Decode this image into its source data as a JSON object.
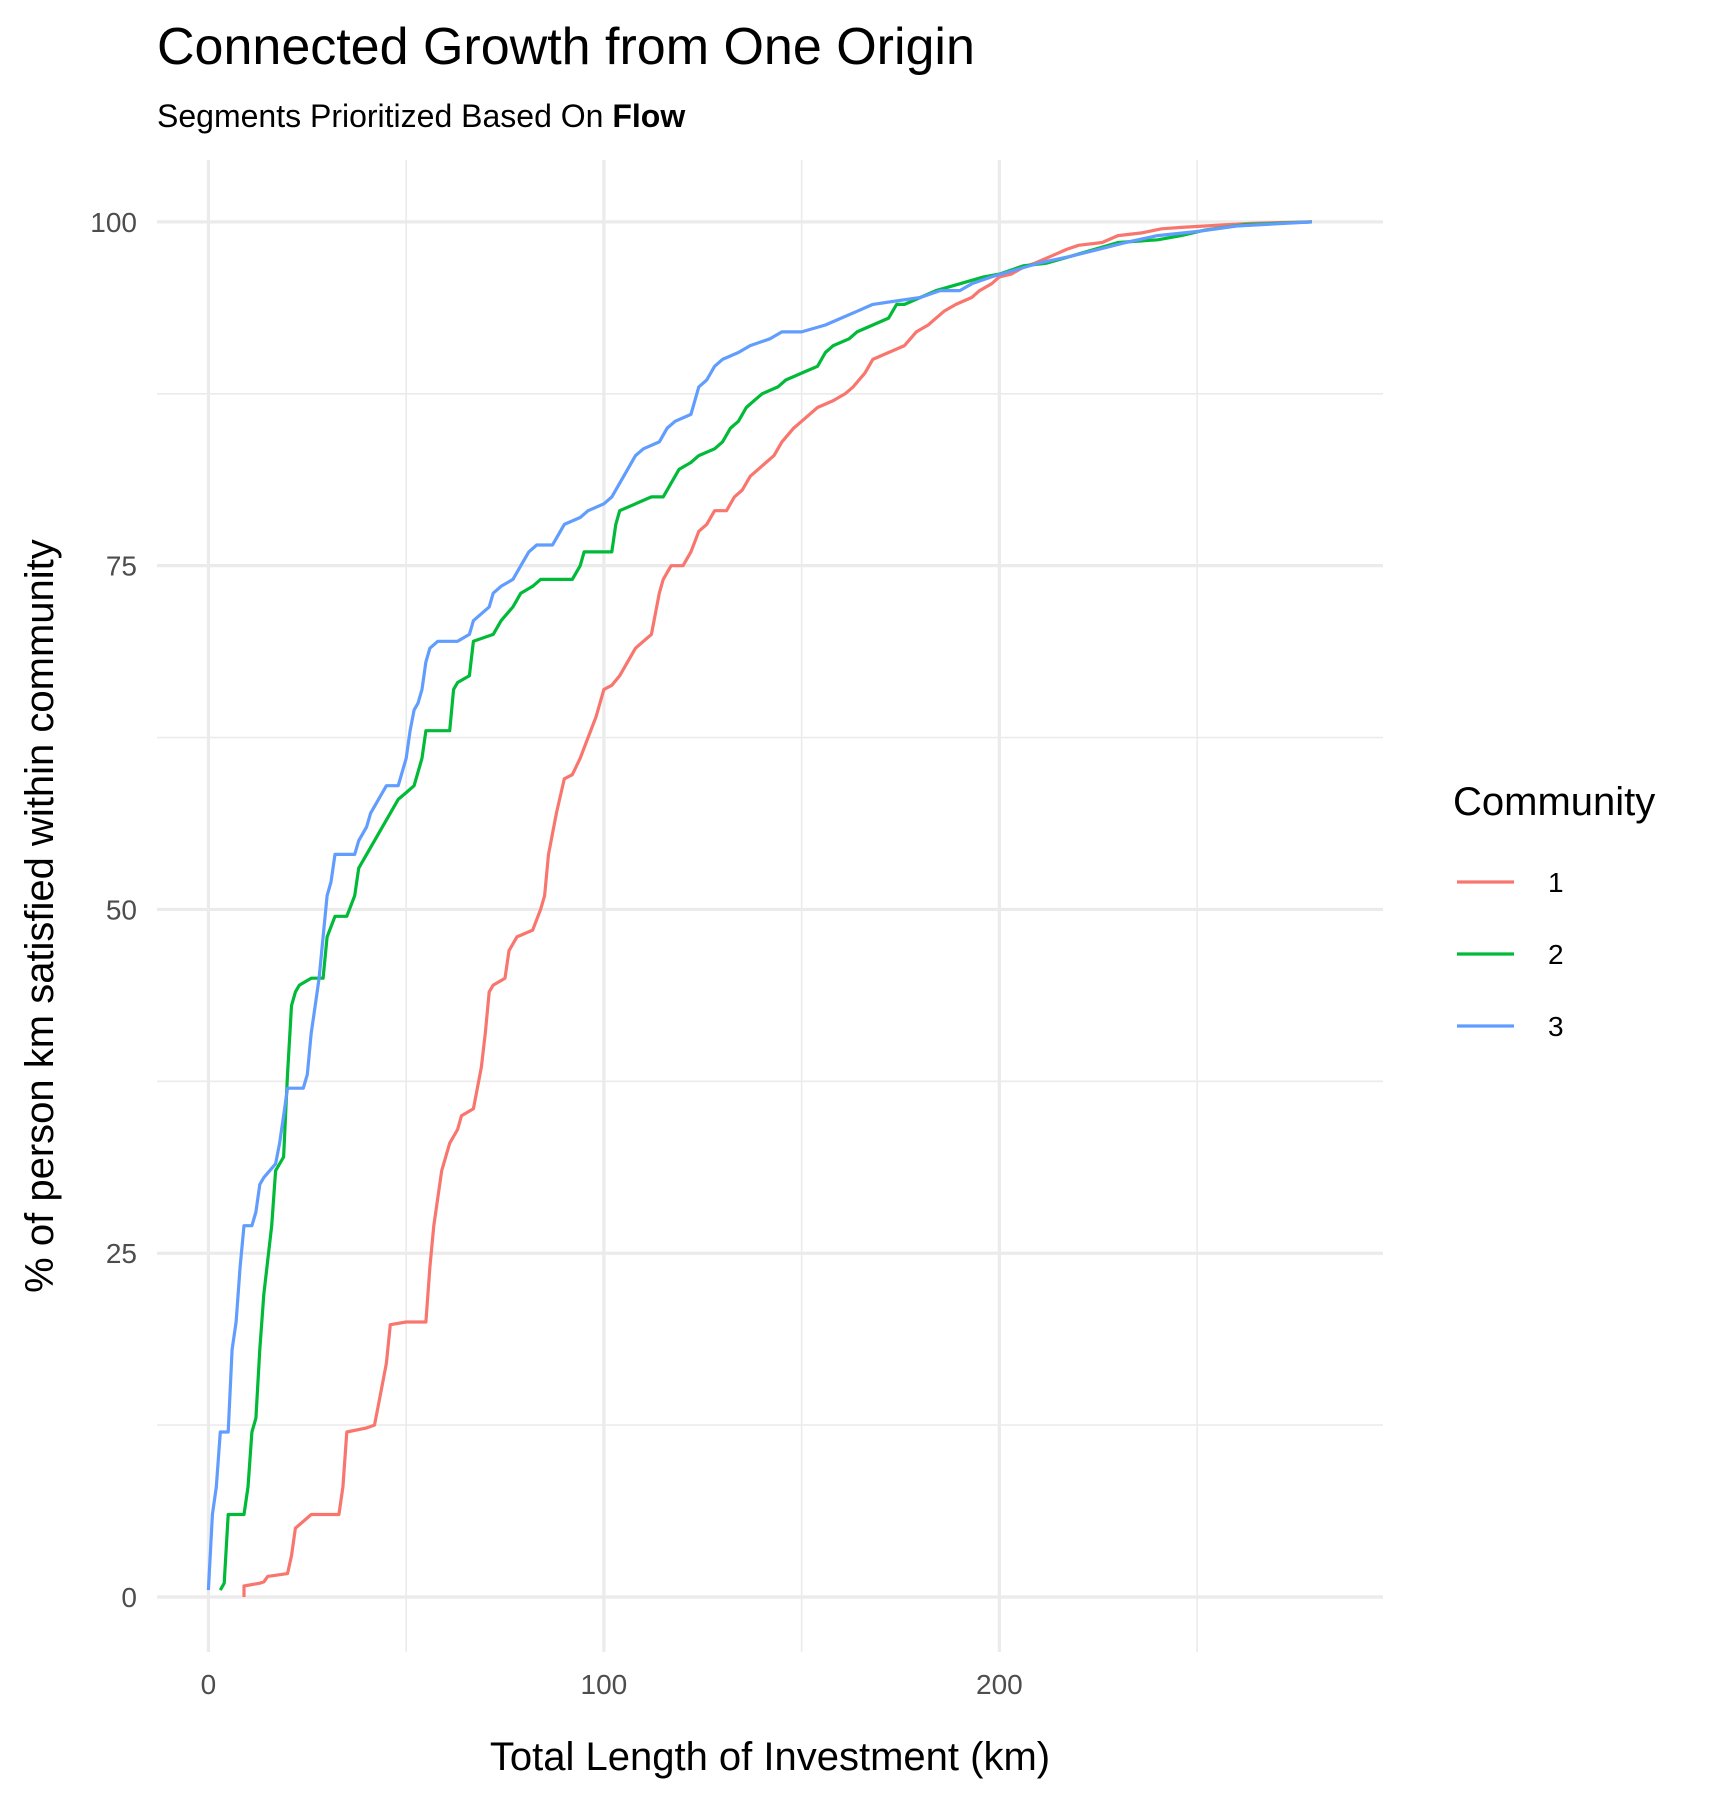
{
  "chart_data": {
    "type": "line",
    "title": "Connected Growth from One Origin",
    "subtitle_prefix": "Segments Prioritized Based On ",
    "subtitle_bold": "Flow",
    "xlabel": "Total Length of Investment (km)",
    "ylabel": "% of person km satisfied within community",
    "xlim": [
      -13,
      297
    ],
    "ylim": [
      -4,
      104.5
    ],
    "x_ticks": [
      0,
      100,
      200
    ],
    "x_minor_ticks": [
      50,
      150,
      250
    ],
    "y_ticks": [
      0,
      25,
      50,
      75,
      100
    ],
    "y_minor_ticks": [
      12.5,
      37.5,
      62.5,
      87.5
    ],
    "grid": true,
    "legend": {
      "title": "Community",
      "position": "right"
    },
    "series": [
      {
        "name": "1",
        "color": "#F8766D",
        "points": [
          [
            9,
            0
          ],
          [
            9,
            0.8
          ],
          [
            13,
            1
          ],
          [
            14,
            1.1
          ],
          [
            15,
            1.5
          ],
          [
            20,
            1.7
          ],
          [
            21,
            3
          ],
          [
            22,
            5
          ],
          [
            24,
            5.5
          ],
          [
            26,
            6
          ],
          [
            33,
            6
          ],
          [
            34,
            8
          ],
          [
            35,
            12
          ],
          [
            40,
            12.3
          ],
          [
            42,
            12.5
          ],
          [
            43,
            14
          ],
          [
            45,
            17
          ],
          [
            46,
            19.8
          ],
          [
            50,
            20
          ],
          [
            55,
            20
          ],
          [
            56,
            24
          ],
          [
            57,
            27
          ],
          [
            59,
            31
          ],
          [
            61,
            33
          ],
          [
            63,
            34
          ],
          [
            64,
            35
          ],
          [
            67,
            35.5
          ],
          [
            69,
            38.5
          ],
          [
            70,
            41
          ],
          [
            71,
            44
          ],
          [
            72,
            44.5
          ],
          [
            75,
            45
          ],
          [
            76,
            47
          ],
          [
            78,
            48
          ],
          [
            82,
            48.5
          ],
          [
            84,
            50
          ],
          [
            85,
            51
          ],
          [
            86,
            54
          ],
          [
            88,
            57
          ],
          [
            90,
            59.5
          ],
          [
            92,
            59.8
          ],
          [
            94,
            61
          ],
          [
            96,
            62.5
          ],
          [
            98,
            64
          ],
          [
            100,
            66
          ],
          [
            102,
            66.3
          ],
          [
            104,
            67
          ],
          [
            106,
            68
          ],
          [
            108,
            69
          ],
          [
            110,
            69.5
          ],
          [
            112,
            70
          ],
          [
            114,
            73
          ],
          [
            115,
            74
          ],
          [
            117,
            75
          ],
          [
            120,
            75
          ],
          [
            122,
            76
          ],
          [
            124,
            77.5
          ],
          [
            126,
            78
          ],
          [
            128,
            79
          ],
          [
            131,
            79
          ],
          [
            133,
            80
          ],
          [
            135,
            80.5
          ],
          [
            137,
            81.5
          ],
          [
            139,
            82
          ],
          [
            141,
            82.5
          ],
          [
            143,
            83
          ],
          [
            145,
            84
          ],
          [
            148,
            85
          ],
          [
            150,
            85.5
          ],
          [
            152,
            86
          ],
          [
            154,
            86.5
          ],
          [
            158,
            87
          ],
          [
            161,
            87.5
          ],
          [
            163,
            88
          ],
          [
            166,
            89
          ],
          [
            168,
            90
          ],
          [
            172,
            90.5
          ],
          [
            176,
            91
          ],
          [
            179,
            92
          ],
          [
            182,
            92.5
          ],
          [
            184,
            93
          ],
          [
            186,
            93.5
          ],
          [
            189,
            94
          ],
          [
            193,
            94.5
          ],
          [
            195,
            95
          ],
          [
            198,
            95.5
          ],
          [
            200,
            96
          ],
          [
            203,
            96.2
          ],
          [
            206,
            96.7
          ],
          [
            209,
            97
          ],
          [
            213,
            97.5
          ],
          [
            217,
            98
          ],
          [
            220,
            98.3
          ],
          [
            226,
            98.5
          ],
          [
            230,
            99
          ],
          [
            236,
            99.2
          ],
          [
            241,
            99.5
          ],
          [
            246,
            99.6
          ],
          [
            252,
            99.7
          ],
          [
            258,
            99.8
          ],
          [
            264,
            99.9
          ],
          [
            279,
            100
          ]
        ]
      },
      {
        "name": "2",
        "color": "#00BA38",
        "points": [
          [
            3,
            0.5
          ],
          [
            4,
            1
          ],
          [
            5,
            6
          ],
          [
            9,
            6
          ],
          [
            10,
            8
          ],
          [
            11,
            12
          ],
          [
            12,
            13
          ],
          [
            13,
            18
          ],
          [
            14,
            22
          ],
          [
            16,
            27
          ],
          [
            17,
            31
          ],
          [
            19,
            32
          ],
          [
            20,
            38
          ],
          [
            21,
            43
          ],
          [
            22,
            44
          ],
          [
            23,
            44.5
          ],
          [
            26,
            45
          ],
          [
            29,
            45
          ],
          [
            30,
            48
          ],
          [
            32,
            49.5
          ],
          [
            35,
            49.5
          ],
          [
            37,
            51
          ],
          [
            38,
            53
          ],
          [
            40,
            54
          ],
          [
            42,
            55
          ],
          [
            44,
            56
          ],
          [
            46,
            57
          ],
          [
            48,
            58
          ],
          [
            50,
            58.5
          ],
          [
            52,
            59
          ],
          [
            54,
            61
          ],
          [
            55,
            63
          ],
          [
            58,
            63
          ],
          [
            61,
            63
          ],
          [
            62,
            66
          ],
          [
            63,
            66.5
          ],
          [
            66,
            67
          ],
          [
            67,
            69.5
          ],
          [
            72,
            70
          ],
          [
            74,
            71
          ],
          [
            77,
            72
          ],
          [
            79,
            73
          ],
          [
            82,
            73.5
          ],
          [
            84,
            74
          ],
          [
            92,
            74
          ],
          [
            94,
            75
          ],
          [
            95,
            76
          ],
          [
            102,
            76
          ],
          [
            103,
            78
          ],
          [
            104,
            79
          ],
          [
            108,
            79.5
          ],
          [
            112,
            80
          ],
          [
            115,
            80
          ],
          [
            117,
            81
          ],
          [
            119,
            82
          ],
          [
            122,
            82.5
          ],
          [
            124,
            83
          ],
          [
            128,
            83.5
          ],
          [
            130,
            84
          ],
          [
            132,
            85
          ],
          [
            134,
            85.5
          ],
          [
            136,
            86.5
          ],
          [
            138,
            87
          ],
          [
            140,
            87.5
          ],
          [
            144,
            88
          ],
          [
            146,
            88.5
          ],
          [
            150,
            89
          ],
          [
            154,
            89.5
          ],
          [
            156,
            90.5
          ],
          [
            158,
            91
          ],
          [
            162,
            91.5
          ],
          [
            164,
            92
          ],
          [
            168,
            92.5
          ],
          [
            172,
            93
          ],
          [
            174,
            94
          ],
          [
            176,
            94
          ],
          [
            180,
            94.5
          ],
          [
            184,
            95
          ],
          [
            190,
            95.5
          ],
          [
            196,
            96
          ],
          [
            200,
            96.2
          ],
          [
            206,
            96.8
          ],
          [
            212,
            97
          ],
          [
            218,
            97.5
          ],
          [
            224,
            98
          ],
          [
            230,
            98.5
          ],
          [
            240,
            98.7
          ],
          [
            246,
            99
          ],
          [
            252,
            99.4
          ],
          [
            262,
            99.8
          ],
          [
            279,
            100
          ]
        ]
      },
      {
        "name": "3",
        "color": "#619CFF",
        "points": [
          [
            0,
            0.5
          ],
          [
            1,
            6
          ],
          [
            2,
            8
          ],
          [
            3,
            12
          ],
          [
            5,
            12
          ],
          [
            6,
            18
          ],
          [
            7,
            20
          ],
          [
            8,
            24
          ],
          [
            9,
            27
          ],
          [
            11,
            27
          ],
          [
            12,
            28
          ],
          [
            13,
            30
          ],
          [
            14,
            30.5
          ],
          [
            17,
            31.5
          ],
          [
            18,
            33
          ],
          [
            19,
            35
          ],
          [
            20,
            37
          ],
          [
            24,
            37
          ],
          [
            25,
            38
          ],
          [
            26,
            41
          ],
          [
            27,
            43
          ],
          [
            28,
            45
          ],
          [
            29,
            48
          ],
          [
            30,
            51
          ],
          [
            31,
            52
          ],
          [
            32,
            54
          ],
          [
            37,
            54
          ],
          [
            38,
            55
          ],
          [
            40,
            56
          ],
          [
            41,
            57
          ],
          [
            43,
            58
          ],
          [
            45,
            59
          ],
          [
            48,
            59
          ],
          [
            49,
            60
          ],
          [
            50,
            61
          ],
          [
            51,
            63
          ],
          [
            52,
            64.5
          ],
          [
            53,
            65
          ],
          [
            54,
            66
          ],
          [
            55,
            68
          ],
          [
            56,
            69
          ],
          [
            58,
            69.5
          ],
          [
            63,
            69.5
          ],
          [
            66,
            70
          ],
          [
            67,
            71
          ],
          [
            71,
            72
          ],
          [
            72,
            73
          ],
          [
            74,
            73.5
          ],
          [
            77,
            74
          ],
          [
            79,
            75
          ],
          [
            81,
            76
          ],
          [
            83,
            76.5
          ],
          [
            87,
            76.5
          ],
          [
            88,
            77
          ],
          [
            90,
            78
          ],
          [
            94,
            78.5
          ],
          [
            96,
            79
          ],
          [
            100,
            79.5
          ],
          [
            102,
            80
          ],
          [
            104,
            81
          ],
          [
            106,
            82
          ],
          [
            108,
            83
          ],
          [
            110,
            83.5
          ],
          [
            114,
            84
          ],
          [
            116,
            85
          ],
          [
            118,
            85.5
          ],
          [
            122,
            86
          ],
          [
            124,
            88
          ],
          [
            126,
            88.5
          ],
          [
            128,
            89.5
          ],
          [
            130,
            90
          ],
          [
            134,
            90.5
          ],
          [
            137,
            91
          ],
          [
            142,
            91.5
          ],
          [
            145,
            92
          ],
          [
            150,
            92
          ],
          [
            156,
            92.5
          ],
          [
            160,
            93
          ],
          [
            164,
            93.5
          ],
          [
            168,
            94
          ],
          [
            180,
            94.5
          ],
          [
            185,
            95
          ],
          [
            190,
            95
          ],
          [
            193,
            95.5
          ],
          [
            198,
            96
          ],
          [
            204,
            96.5
          ],
          [
            210,
            97
          ],
          [
            218,
            97.5
          ],
          [
            225,
            98
          ],
          [
            232,
            98.5
          ],
          [
            240,
            99
          ],
          [
            250,
            99.3
          ],
          [
            260,
            99.7
          ],
          [
            279,
            100
          ]
        ]
      }
    ]
  }
}
